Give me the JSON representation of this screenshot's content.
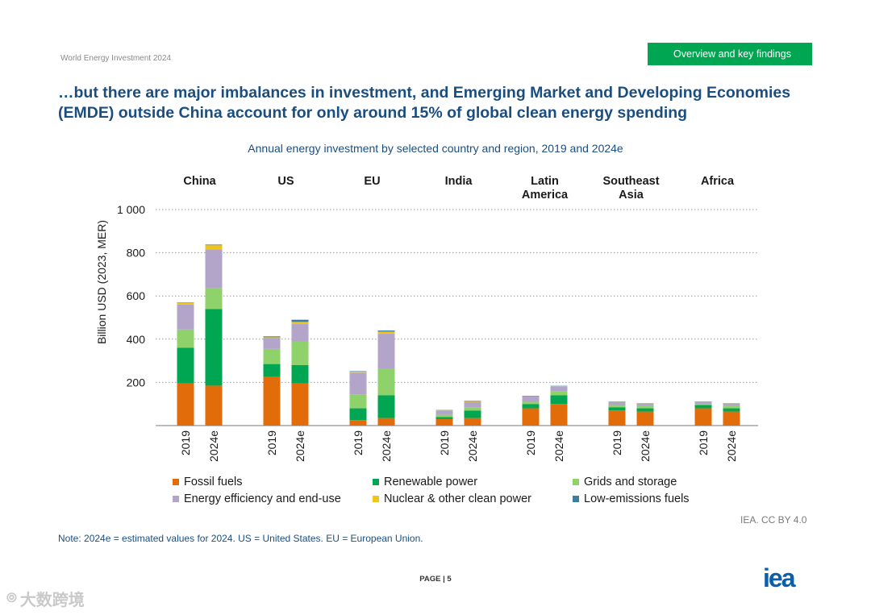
{
  "header": {
    "report_name": "World Energy Investment 2024",
    "section_tag": "Overview and key findings",
    "headline": "…but there are major imbalances in investment, and Emerging Market and Developing Economies (EMDE) outside China account for only around 15% of global clean energy spending"
  },
  "chart_data": {
    "type": "bar",
    "stacked": true,
    "title": "Annual energy investment by selected country and region, 2019 and 2024e",
    "ylabel": "Billion USD (2023, MER)",
    "ylim": [
      0,
      1000
    ],
    "yticks": [
      200,
      400,
      600,
      800,
      1000
    ],
    "ytick_labels": [
      "200",
      "400",
      "600",
      "800",
      "1 000"
    ],
    "grid": true,
    "legend_position": "bottom",
    "groups": [
      {
        "name": "China",
        "categories": [
          "2019",
          "2024e"
        ]
      },
      {
        "name": "US",
        "categories": [
          "2019",
          "2024e"
        ]
      },
      {
        "name": "EU",
        "categories": [
          "2019",
          "2024e"
        ]
      },
      {
        "name": "India",
        "categories": [
          "2019",
          "2024e"
        ]
      },
      {
        "name": "Latin America",
        "categories": [
          "2019",
          "2024e"
        ]
      },
      {
        "name": "Southeast Asia",
        "categories": [
          "2019",
          "2024e"
        ]
      },
      {
        "name": "Africa",
        "categories": [
          "2019",
          "2024e"
        ]
      }
    ],
    "series": [
      {
        "name": "Fossil fuels",
        "color": "#e36c0a",
        "values": [
          195,
          185,
          225,
          195,
          25,
          35,
          30,
          35,
          80,
          100,
          70,
          65,
          80,
          65
        ]
      },
      {
        "name": "Renewable power",
        "color": "#00a651",
        "values": [
          165,
          355,
          60,
          85,
          55,
          105,
          10,
          35,
          20,
          40,
          15,
          15,
          15,
          15
        ]
      },
      {
        "name": "Grids and storage",
        "color": "#8fd16b",
        "values": [
          85,
          95,
          70,
          110,
          65,
          125,
          10,
          15,
          10,
          20,
          10,
          10,
          5,
          10
        ]
      },
      {
        "name": "Energy efficiency and end-use",
        "color": "#b2a5c9",
        "values": [
          115,
          180,
          50,
          80,
          100,
          160,
          20,
          25,
          25,
          20,
          15,
          12,
          10,
          12
        ]
      },
      {
        "name": "Nuclear & other clean power",
        "color": "#f0c419",
        "values": [
          8,
          20,
          4,
          10,
          5,
          10,
          2,
          3,
          1,
          2,
          1,
          1,
          1,
          1
        ]
      },
      {
        "name": "Low-emissions fuels",
        "color": "#3b7ea1",
        "values": [
          2,
          3,
          4,
          10,
          2,
          5,
          1,
          2,
          2,
          2,
          1,
          1,
          1,
          1
        ]
      }
    ]
  },
  "footer": {
    "credit": "IEA. CC BY 4.0",
    "note": "Note: 2024e = estimated values for 2024. US = United States. EU = European Union.",
    "page_prefix": "PAGE",
    "page_number": "5",
    "logo_text": "iea",
    "watermark_text": "大数跨境"
  }
}
